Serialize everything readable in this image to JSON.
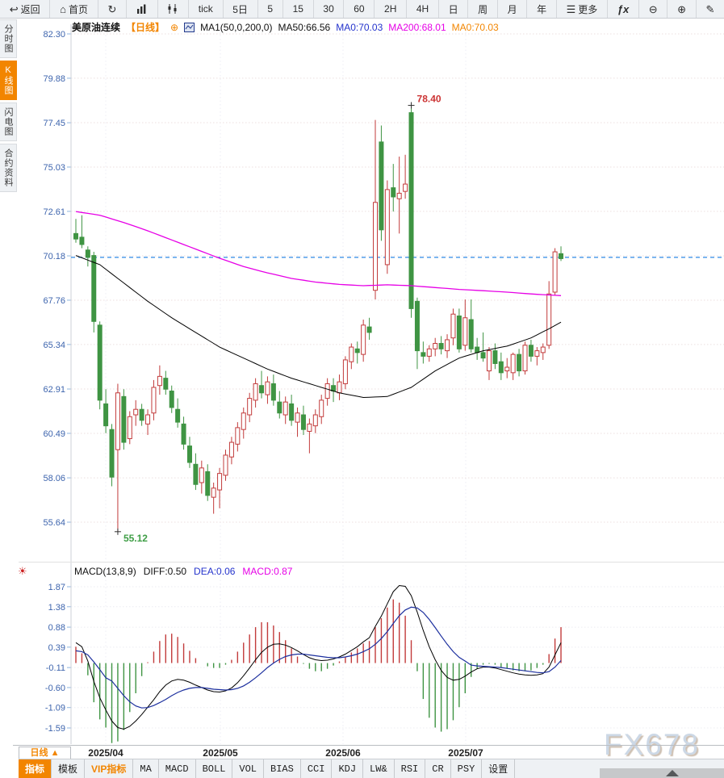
{
  "icons": {
    "back": "↩",
    "home": "⌂",
    "refresh": "↻",
    "menu": "☰",
    "fx": "ƒx",
    "zoom_out": "⊖",
    "zoom_in": "⊕",
    "pen": "✎",
    "sun": "☀",
    "plus_circle": "⊕"
  },
  "toolbar": {
    "items": [
      {
        "name": "back",
        "label": "返回"
      },
      {
        "name": "home",
        "label": "首页"
      },
      {
        "name": "refresh",
        "label": ""
      },
      {
        "name": "bar-chart",
        "label": ""
      },
      {
        "name": "candlestick",
        "label": ""
      },
      {
        "name": "tick",
        "label": "tick"
      },
      {
        "name": "period-5d",
        "label": "5日"
      },
      {
        "name": "period-5",
        "label": "5"
      },
      {
        "name": "period-15",
        "label": "15"
      },
      {
        "name": "period-30",
        "label": "30"
      },
      {
        "name": "period-60",
        "label": "60"
      },
      {
        "name": "period-2h",
        "label": "2H"
      },
      {
        "name": "period-4h",
        "label": "4H"
      },
      {
        "name": "period-day",
        "label": "日"
      },
      {
        "name": "period-week",
        "label": "周"
      },
      {
        "name": "period-month",
        "label": "月"
      },
      {
        "name": "period-year",
        "label": "年"
      },
      {
        "name": "more",
        "label": "更多"
      },
      {
        "name": "fx",
        "label": ""
      },
      {
        "name": "zoom-out",
        "label": ""
      },
      {
        "name": "zoom-in",
        "label": ""
      },
      {
        "name": "draw",
        "label": ""
      }
    ]
  },
  "sidebar": {
    "items": [
      {
        "label": "分时图",
        "active": false
      },
      {
        "label": "K线图",
        "active": true
      },
      {
        "label": "闪电图",
        "active": false
      },
      {
        "label": "合约资料",
        "active": false
      }
    ]
  },
  "chart_header": {
    "symbol": "美原油连续",
    "period_tag": "【日线】",
    "ma_settings": "MA1(50,0,200,0)",
    "ma1_label": "MA50:66.56",
    "ma2_label": "MA0:70.03",
    "ma3_label": "MA200:68.01",
    "ma4_label": "MA0:70.03"
  },
  "macd_header": {
    "title": "MACD(13,8,9)",
    "diff_label": "DIFF:0.50",
    "dea_label": "DEA:0.06",
    "macd_label": "MACD:0.87"
  },
  "bottom": {
    "period_label": "日线 ▲",
    "tabs": [
      {
        "label": "指标",
        "style": "active"
      },
      {
        "label": "模板",
        "style": "cn"
      },
      {
        "label": "VIP指标",
        "style": "vip"
      },
      {
        "label": "MA"
      },
      {
        "label": "MACD"
      },
      {
        "label": "BOLL"
      },
      {
        "label": "VOL"
      },
      {
        "label": "BIAS"
      },
      {
        "label": "CCI"
      },
      {
        "label": "KDJ"
      },
      {
        "label": "LW&"
      },
      {
        "label": "RSI"
      },
      {
        "label": "CR"
      },
      {
        "label": "PSY"
      },
      {
        "label": "设置",
        "style": "cn"
      }
    ]
  },
  "watermark": "FX678",
  "chart_data": {
    "type": "candlestick+macd",
    "symbol": "美原油连续",
    "period": "日线",
    "y_axis_labels": [
      82.3,
      79.88,
      77.45,
      75.03,
      72.61,
      70.18,
      67.76,
      65.34,
      62.91,
      60.49,
      58.06,
      55.64
    ],
    "x_axis_labels": [
      "2025/04",
      "2025/05",
      "2025/06",
      "2025/07"
    ],
    "price_max": 82.3,
    "price_min": 55.64,
    "current_price_line": 70.1,
    "annotations": [
      {
        "text": "78.40",
        "color": "#cc3434",
        "candle_index": 56,
        "at": "high"
      },
      {
        "text": "55.12",
        "color": "#3f9e46",
        "candle_index": 7,
        "at": "low"
      }
    ],
    "candles": [
      [
        71.4,
        72.2,
        70.9,
        71.1
      ],
      [
        71.2,
        72.4,
        70.6,
        70.8
      ],
      [
        70.5,
        70.7,
        69.6,
        70.1
      ],
      [
        70.2,
        70.4,
        66.0,
        66.6
      ],
      [
        66.4,
        66.6,
        61.8,
        62.3
      ],
      [
        62.1,
        62.9,
        60.5,
        60.9
      ],
      [
        60.7,
        61.0,
        57.6,
        58.1
      ],
      [
        59.6,
        63.2,
        55.12,
        62.7
      ],
      [
        62.5,
        62.9,
        59.6,
        60.0
      ],
      [
        60.2,
        61.7,
        59.9,
        61.4
      ],
      [
        61.5,
        62.3,
        60.9,
        61.8
      ],
      [
        61.8,
        62.1,
        60.9,
        61.2
      ],
      [
        61.0,
        61.8,
        60.4,
        61.5
      ],
      [
        61.6,
        63.4,
        61.2,
        63.0
      ],
      [
        63.1,
        64.2,
        62.6,
        63.6
      ],
      [
        63.5,
        63.9,
        62.6,
        62.9
      ],
      [
        62.8,
        63.1,
        61.6,
        61.9
      ],
      [
        61.8,
        62.4,
        60.8,
        61.1
      ],
      [
        61.0,
        61.4,
        59.6,
        59.9
      ],
      [
        59.8,
        60.3,
        58.6,
        58.9
      ],
      [
        58.8,
        59.4,
        57.4,
        57.7
      ],
      [
        57.8,
        59.0,
        57.2,
        58.6
      ],
      [
        58.4,
        58.8,
        56.8,
        57.1
      ],
      [
        57.0,
        57.8,
        56.1,
        57.5
      ],
      [
        57.4,
        58.6,
        56.4,
        58.3
      ],
      [
        58.2,
        59.6,
        57.9,
        59.3
      ],
      [
        59.2,
        60.3,
        58.8,
        60.0
      ],
      [
        59.9,
        61.1,
        59.5,
        60.8
      ],
      [
        60.7,
        61.9,
        60.2,
        61.6
      ],
      [
        61.5,
        62.7,
        61.1,
        62.4
      ],
      [
        62.3,
        63.5,
        61.9,
        63.2
      ],
      [
        63.1,
        63.9,
        62.4,
        62.7
      ],
      [
        62.6,
        63.6,
        62.1,
        63.3
      ],
      [
        63.2,
        63.7,
        62.0,
        62.3
      ],
      [
        62.2,
        62.8,
        61.3,
        61.6
      ],
      [
        61.5,
        62.5,
        61.0,
        62.2
      ],
      [
        62.1,
        62.6,
        60.9,
        61.2
      ],
      [
        61.1,
        61.9,
        60.3,
        61.6
      ],
      [
        61.5,
        62.0,
        60.4,
        60.7
      ],
      [
        60.6,
        61.3,
        59.4,
        61.0
      ],
      [
        60.9,
        61.8,
        60.5,
        61.5
      ],
      [
        61.4,
        62.6,
        61.0,
        62.3
      ],
      [
        62.4,
        63.5,
        62.0,
        63.2
      ],
      [
        63.1,
        63.5,
        62.2,
        62.8
      ],
      [
        62.7,
        63.7,
        62.3,
        63.3
      ],
      [
        63.2,
        64.7,
        62.9,
        64.5
      ],
      [
        64.4,
        65.4,
        64.0,
        65.2
      ],
      [
        65.1,
        65.5,
        64.3,
        64.9
      ],
      [
        64.8,
        66.7,
        64.4,
        66.4
      ],
      [
        66.3,
        66.8,
        65.6,
        66.0
      ],
      [
        68.3,
        77.6,
        67.8,
        73.1
      ],
      [
        76.4,
        77.3,
        71.0,
        71.6
      ],
      [
        69.7,
        74.3,
        69.2,
        73.8
      ],
      [
        73.9,
        75.2,
        72.6,
        73.4
      ],
      [
        73.3,
        75.6,
        71.4,
        73.6
      ],
      [
        73.7,
        75.7,
        73.3,
        74.1
      ],
      [
        78.0,
        78.4,
        66.8,
        67.3
      ],
      [
        67.7,
        67.9,
        64.0,
        65.0
      ],
      [
        64.9,
        65.5,
        64.3,
        64.7
      ],
      [
        64.7,
        65.3,
        64.4,
        65.1
      ],
      [
        65.1,
        65.7,
        64.7,
        65.4
      ],
      [
        65.4,
        65.8,
        64.8,
        65.1
      ],
      [
        65.0,
        65.9,
        64.6,
        65.6
      ],
      [
        65.7,
        67.3,
        65.3,
        67.0
      ],
      [
        66.9,
        67.3,
        64.9,
        65.1
      ],
      [
        65.3,
        67.8,
        65.0,
        66.8
      ],
      [
        66.7,
        67.8,
        64.9,
        65.1
      ],
      [
        65.2,
        65.7,
        64.5,
        64.9
      ],
      [
        64.9,
        66.0,
        64.4,
        64.6
      ],
      [
        63.9,
        65.2,
        63.4,
        65.0
      ],
      [
        65.0,
        65.4,
        64.0,
        64.3
      ],
      [
        64.4,
        64.9,
        63.4,
        63.8
      ],
      [
        63.9,
        64.6,
        63.5,
        64.1
      ],
      [
        63.8,
        64.9,
        63.4,
        64.8
      ],
      [
        64.8,
        65.1,
        63.6,
        63.9
      ],
      [
        63.9,
        65.5,
        63.7,
        65.3
      ],
      [
        65.3,
        65.6,
        64.4,
        64.7
      ],
      [
        64.7,
        65.2,
        64.2,
        65.0
      ],
      [
        64.9,
        65.4,
        64.5,
        65.2
      ],
      [
        65.3,
        68.8,
        65.1,
        68.1
      ],
      [
        68.2,
        70.6,
        68.0,
        70.4
      ],
      [
        70.3,
        70.7,
        69.9,
        70.03
      ]
    ],
    "ma50_keypoints": [
      [
        0,
        70.2
      ],
      [
        4,
        69.7
      ],
      [
        8,
        68.7
      ],
      [
        12,
        67.7
      ],
      [
        16,
        66.8
      ],
      [
        20,
        66.0
      ],
      [
        24,
        65.2
      ],
      [
        28,
        64.6
      ],
      [
        32,
        64.0
      ],
      [
        36,
        63.5
      ],
      [
        40,
        63.1
      ],
      [
        44,
        62.7
      ],
      [
        48,
        62.45
      ],
      [
        52,
        62.5
      ],
      [
        56,
        63.0
      ],
      [
        60,
        63.9
      ],
      [
        64,
        64.6
      ],
      [
        68,
        65.0
      ],
      [
        72,
        65.25
      ],
      [
        76,
        65.7
      ],
      [
        79,
        66.2
      ],
      [
        81,
        66.56
      ]
    ],
    "ma200_keypoints": [
      [
        0,
        72.6
      ],
      [
        4,
        72.4
      ],
      [
        8,
        72.0
      ],
      [
        12,
        71.55
      ],
      [
        16,
        71.05
      ],
      [
        20,
        70.55
      ],
      [
        24,
        70.05
      ],
      [
        28,
        69.6
      ],
      [
        32,
        69.25
      ],
      [
        36,
        68.95
      ],
      [
        40,
        68.75
      ],
      [
        44,
        68.62
      ],
      [
        48,
        68.55
      ],
      [
        52,
        68.6
      ],
      [
        56,
        68.55
      ],
      [
        60,
        68.45
      ],
      [
        64,
        68.35
      ],
      [
        68,
        68.28
      ],
      [
        72,
        68.2
      ],
      [
        76,
        68.1
      ],
      [
        81,
        68.01
      ]
    ],
    "macd": {
      "y_axis_labels": [
        1.87,
        1.38,
        0.88,
        0.39,
        -0.11,
        -0.6,
        -1.09,
        -1.59
      ],
      "diff": [
        0.5,
        0.4,
        0.05,
        -0.45,
        -0.85,
        -1.15,
        -1.42,
        -1.58,
        -1.62,
        -1.55,
        -1.42,
        -1.26,
        -1.08,
        -0.9,
        -0.7,
        -0.54,
        -0.44,
        -0.4,
        -0.42,
        -0.47,
        -0.54,
        -0.6,
        -0.66,
        -0.7,
        -0.71,
        -0.68,
        -0.61,
        -0.48,
        -0.31,
        -0.12,
        0.08,
        0.26,
        0.39,
        0.46,
        0.47,
        0.44,
        0.38,
        0.3,
        0.21,
        0.13,
        0.08,
        0.06,
        0.07,
        0.1,
        0.15,
        0.22,
        0.31,
        0.4,
        0.52,
        0.62,
        0.9,
        1.15,
        1.45,
        1.75,
        1.9,
        1.88,
        1.65,
        1.25,
        0.8,
        0.4,
        0.08,
        -0.18,
        -0.35,
        -0.42,
        -0.4,
        -0.32,
        -0.22,
        -0.14,
        -0.1,
        -0.1,
        -0.12,
        -0.16,
        -0.2,
        -0.24,
        -0.27,
        -0.29,
        -0.3,
        -0.29,
        -0.26,
        -0.1,
        0.2,
        0.5
      ],
      "dea": [
        0.3,
        0.28,
        0.2,
        0.03,
        -0.16,
        -0.36,
        -0.44,
        -0.62,
        -0.8,
        -0.95,
        -1.05,
        -1.1,
        -1.09,
        -1.04,
        -0.97,
        -0.89,
        -0.8,
        -0.72,
        -0.66,
        -0.62,
        -0.6,
        -0.6,
        -0.62,
        -0.64,
        -0.65,
        -0.66,
        -0.65,
        -0.62,
        -0.56,
        -0.47,
        -0.36,
        -0.24,
        -0.11,
        0.0,
        0.09,
        0.16,
        0.2,
        0.22,
        0.22,
        0.2,
        0.18,
        0.16,
        0.14,
        0.13,
        0.13,
        0.15,
        0.18,
        0.22,
        0.28,
        0.35,
        0.46,
        0.6,
        0.77,
        0.97,
        1.16,
        1.3,
        1.37,
        1.35,
        1.24,
        1.07,
        0.87,
        0.66,
        0.46,
        0.28,
        0.14,
        0.05,
        -0.05,
        -0.07,
        -0.08,
        -0.09,
        -0.1,
        -0.11,
        -0.13,
        -0.15,
        -0.17,
        -0.19,
        -0.21,
        -0.23,
        -0.24,
        -0.21,
        -0.1,
        0.06
      ]
    },
    "colors": {
      "up": "#c23b3b",
      "down": "#3f9443",
      "ma50": "#000000",
      "ma200": "#e600e6",
      "diff": "#000000",
      "dea": "#1c2f9e",
      "price_line": "#2e8ae6",
      "axis_text": "#3d64ad",
      "grid": "#ecdfdf",
      "accent_orange": "#f28500"
    }
  }
}
